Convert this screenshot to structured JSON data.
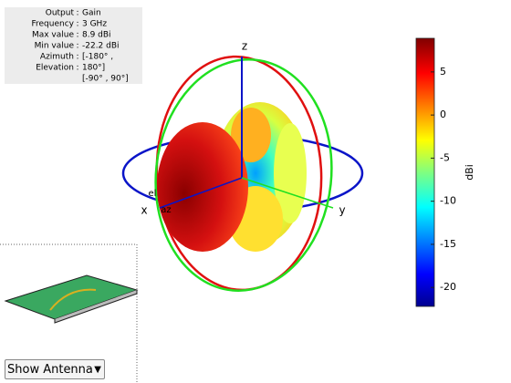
{
  "info_panel": {
    "rows": [
      {
        "key": "Output",
        "value": "Gain"
      },
      {
        "key": "Frequency",
        "value": "3 GHz"
      },
      {
        "key": "Max value",
        "value": "8.9 dBi"
      },
      {
        "key": "Min value",
        "value": "-22.2 dBi"
      },
      {
        "key": "Azimuth",
        "value": "[-180° ,"
      },
      {
        "key": "Elevation",
        "value": "180°]"
      },
      {
        "value": "[-90° , 90°]"
      }
    ]
  },
  "axes": {
    "x": "x",
    "y": "y",
    "z": "z",
    "az": "az",
    "el": "el"
  },
  "colorbar": {
    "label": "dBi",
    "lim": [
      -22.2,
      8.9
    ],
    "ticks": [
      -20,
      -15,
      -10,
      -5,
      0,
      5
    ]
  },
  "dropdown": {
    "label": "Show Antenna"
  }
}
